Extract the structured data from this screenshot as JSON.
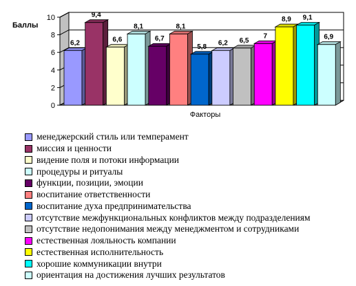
{
  "chart_data": {
    "type": "bar",
    "ylabel": "Баллы",
    "xlabel": "Факторы",
    "ylim": [
      0,
      10
    ],
    "yticks": [
      0,
      2,
      4,
      6,
      8,
      10
    ],
    "grid": true,
    "legend_position": "bottom",
    "series": [
      {
        "name": "менеджерский стиль или темперамент",
        "value": 6.2,
        "label": "6,2",
        "color": "#9999ff"
      },
      {
        "name": "миссия и ценности",
        "value": 9.4,
        "label": "9,4",
        "color": "#993366"
      },
      {
        "name": "видение поля и потоки информации",
        "value": 6.6,
        "label": "6,6",
        "color": "#ffffcc"
      },
      {
        "name": "процедуры и ритуалы",
        "value": 8.1,
        "label": "8,1",
        "color": "#ccffff"
      },
      {
        "name": "функции, позиции, эмоции",
        "value": 6.7,
        "label": "6,7",
        "color": "#660066"
      },
      {
        "name": "воспитание ответственности",
        "value": 8.1,
        "label": "8,1",
        "color": "#ff8080"
      },
      {
        "name": "воспитание духа предпринимательства",
        "value": 5.8,
        "label": "5,8",
        "color": "#0066cc"
      },
      {
        "name": "отсутствие межфункциональных конфликтов между подразделениям",
        "value": 6.2,
        "label": "6,2",
        "color": "#ccccff"
      },
      {
        "name": "отсутствие недопонимания между менеджментом и сотрудниками",
        "value": 6.5,
        "label": "6,5",
        "color": "#c0c0c0"
      },
      {
        "name": "естественная лояльность компании",
        "value": 7,
        "label": "7",
        "color": "#ff00ff"
      },
      {
        "name": "естественная исполнительность",
        "value": 8.9,
        "label": "8,9",
        "color": "#ffff00"
      },
      {
        "name": "хорошие коммуникации внутри",
        "value": 9.1,
        "label": "9,1",
        "color": "#00ffff"
      },
      {
        "name": "ориентация на достижения лучших результатов",
        "value": 6.9,
        "label": "6,9",
        "color": "#ccffff"
      }
    ]
  }
}
